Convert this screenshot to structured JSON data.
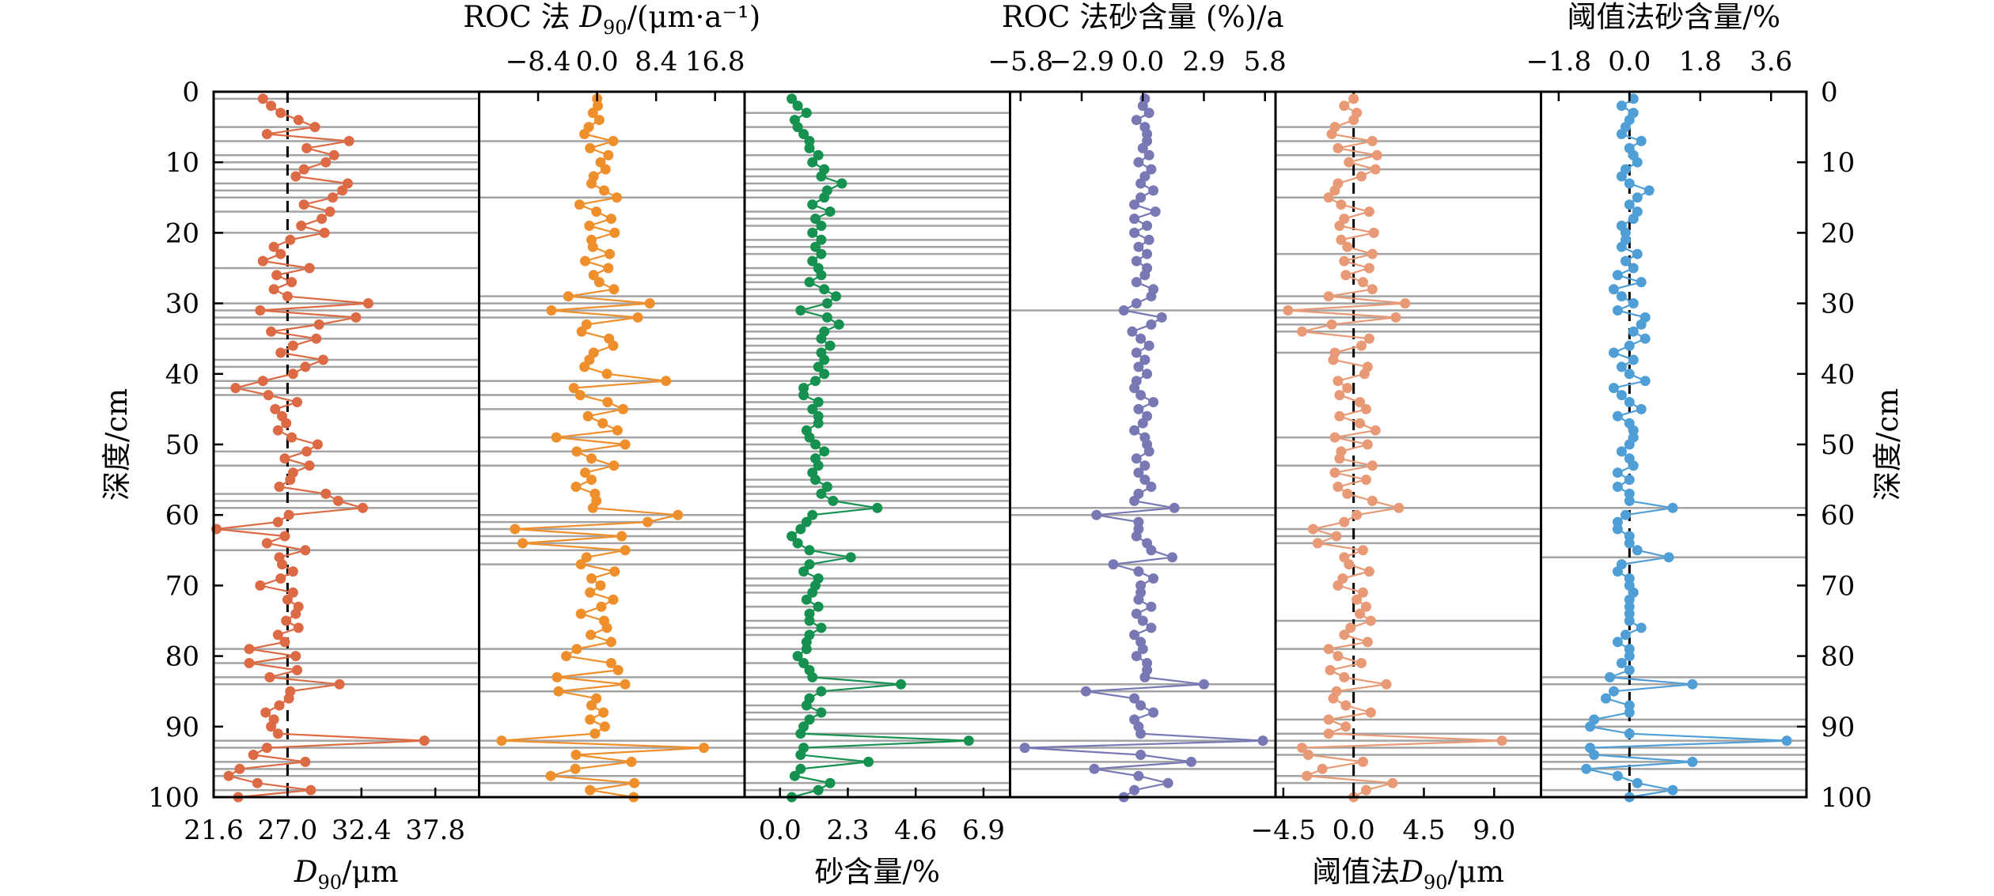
{
  "chart_data": {
    "type": "line",
    "depth_axis": {
      "label": "深度/cm",
      "range": [
        0,
        100
      ],
      "ticks": [
        "0",
        "10",
        "20",
        "30",
        "40",
        "50",
        "60",
        "70",
        "80",
        "90",
        "100"
      ],
      "direction": "downward"
    },
    "depths": [
      1,
      2,
      3,
      4,
      5,
      6,
      7,
      8,
      9,
      10,
      11,
      12,
      13,
      14,
      15,
      16,
      17,
      18,
      19,
      20,
      21,
      22,
      23,
      24,
      25,
      26,
      27,
      28,
      29,
      30,
      31,
      32,
      33,
      34,
      35,
      36,
      37,
      38,
      39,
      40,
      41,
      42,
      43,
      44,
      45,
      46,
      47,
      48,
      49,
      50,
      51,
      52,
      53,
      54,
      55,
      56,
      57,
      58,
      59,
      60,
      61,
      62,
      63,
      64,
      65,
      66,
      67,
      68,
      69,
      70,
      71,
      72,
      73,
      74,
      75,
      76,
      77,
      78,
      79,
      80,
      81,
      82,
      83,
      84,
      85,
      86,
      87,
      88,
      89,
      90,
      91,
      92,
      93,
      94,
      95,
      96,
      97,
      98,
      99,
      100
    ],
    "panels": [
      {
        "id": "d90",
        "title_top": "",
        "title_bottom": "D90/μm",
        "bottom_ticks": [
          "21.6",
          "27.0",
          "32.4",
          "37.8"
        ],
        "top_ticks": [],
        "xlim": [
          21.6,
          41.0
        ],
        "tick_values": [
          21.6,
          27.0,
          32.4,
          37.8
        ],
        "ref_line": 27.0,
        "color": "#dc6a45",
        "values": [
          25.2,
          25.8,
          26.5,
          27.8,
          29.0,
          25.5,
          31.5,
          28.4,
          30.4,
          29.8,
          28.2,
          27.6,
          31.4,
          31.0,
          30.3,
          28.2,
          30.1,
          29.5,
          28.0,
          29.7,
          27.2,
          26.0,
          26.5,
          25.2,
          28.6,
          26.2,
          27.3,
          26.0,
          27.0,
          32.9,
          25.0,
          32.0,
          29.3,
          25.8,
          29.1,
          27.4,
          26.5,
          29.6,
          28.3,
          27.4,
          25.2,
          23.2,
          25.6,
          27.7,
          26.1,
          26.6,
          26.9,
          26.3,
          27.3,
          29.2,
          28.4,
          26.8,
          28.6,
          27.4,
          27.2,
          26.4,
          29.8,
          30.7,
          32.5,
          27.1,
          26.3,
          21.8,
          26.8,
          25.5,
          28.3,
          26.4,
          26.6,
          27.4,
          26.5,
          25.0,
          27.4,
          27.0,
          27.8,
          27.6,
          26.9,
          27.8,
          26.3,
          26.8,
          24.2,
          27.6,
          24.2,
          27.7,
          25.7,
          30.8,
          27.2,
          27.1,
          26.4,
          25.4,
          26.0,
          25.8,
          26.3,
          37.0,
          25.5,
          24.5,
          28.3,
          23.5,
          22.7,
          24.8,
          28.7,
          23.4
        ]
      },
      {
        "id": "roc_d90",
        "title_top": "ROC 法 D90/(μm·a⁻¹)",
        "title_bottom": "",
        "bottom_ticks": [],
        "top_ticks": [
          "−8.4",
          "0.0",
          "8.4",
          "16.8"
        ],
        "xlim": [
          -16.8,
          21.0
        ],
        "tick_values": [
          -8.4,
          0.0,
          8.4,
          16.8
        ],
        "ref_line": null,
        "color": "#ee8f2c",
        "values": [
          0.0,
          0.1,
          -0.6,
          0.3,
          -1.2,
          -1.8,
          2.3,
          -1.0,
          1.6,
          0.5,
          1.2,
          -0.5,
          -0.8,
          1.0,
          2.8,
          -2.5,
          -0.1,
          2.0,
          -1.1,
          2.5,
          -0.8,
          -0.6,
          1.8,
          -1.7,
          1.6,
          -0.5,
          0.3,
          2.4,
          -4.1,
          7.5,
          -6.5,
          5.8,
          -1.5,
          -2.2,
          1.7,
          2.3,
          -0.5,
          -1.1,
          -1.8,
          1.4,
          9.8,
          -3.3,
          -2.4,
          1.5,
          3.7,
          -1.3,
          0.8,
          2.9,
          -5.8,
          4.0,
          -2.9,
          -0.8,
          2.4,
          -1.7,
          -0.8,
          -3.0,
          -0.3,
          -0.1,
          -0.6,
          11.5,
          7.2,
          -11.7,
          3.5,
          -10.6,
          4.0,
          -1.5,
          -2.3,
          2.5,
          -0.8,
          0.5,
          -1.0,
          2.3,
          0.6,
          -2.3,
          1.0,
          1.4,
          -0.9,
          2.0,
          -2.9,
          -4.4,
          2.0,
          3.0,
          -5.7,
          4.0,
          -5.5,
          -0.1,
          -0.8,
          0.9,
          -1.0,
          1.1,
          -0.3,
          -13.6,
          15.2,
          -3.0,
          4.9,
          -3.1,
          -6.6,
          5.3,
          -1.0,
          5.2
        ]
      },
      {
        "id": "sand",
        "title_top": "",
        "title_bottom": "砂含量/%",
        "bottom_ticks": [
          "0.0",
          "2.3",
          "4.6",
          "6.9"
        ],
        "top_ticks": [],
        "xlim": [
          -1.2,
          7.8
        ],
        "tick_values": [
          0.0,
          2.3,
          4.6,
          6.9
        ],
        "ref_line": null,
        "color": "#16914f",
        "values": [
          0.4,
          0.6,
          0.9,
          0.5,
          0.6,
          0.8,
          1.0,
          1.0,
          1.3,
          1.1,
          1.5,
          1.4,
          2.1,
          1.6,
          1.5,
          1.1,
          1.7,
          1.2,
          1.4,
          1.1,
          1.4,
          1.2,
          1.4,
          1.1,
          1.3,
          1.4,
          1.0,
          1.5,
          1.9,
          1.6,
          0.7,
          1.6,
          2.0,
          1.5,
          1.4,
          1.7,
          1.4,
          1.5,
          1.3,
          1.5,
          1.2,
          0.8,
          0.8,
          1.3,
          1.1,
          1.3,
          1.3,
          0.9,
          1.0,
          1.2,
          1.5,
          1.2,
          1.3,
          1.1,
          1.2,
          1.6,
          1.4,
          1.8,
          3.3,
          1.1,
          0.9,
          0.7,
          0.4,
          0.6,
          1.0,
          2.4,
          1.0,
          0.8,
          1.3,
          1.2,
          1.1,
          0.9,
          1.3,
          1.0,
          1.0,
          1.4,
          1.0,
          0.9,
          0.9,
          0.6,
          0.8,
          1.0,
          1.1,
          4.1,
          1.4,
          1.0,
          0.9,
          1.4,
          1.0,
          0.8,
          0.7,
          6.4,
          0.8,
          0.7,
          3.0,
          0.7,
          0.5,
          1.7,
          1.3,
          0.4
        ]
      },
      {
        "id": "roc_sand",
        "title_top": "ROC 法砂含量 (%)/a",
        "title_bottom": "",
        "bottom_ticks": [],
        "top_ticks": [
          "−5.8",
          "−2.9",
          "0.0",
          "2.9",
          "5.8"
        ],
        "xlim": [
          -6.3,
          6.3
        ],
        "tick_values": [
          -5.8,
          -2.9,
          0.0,
          2.9,
          5.8
        ],
        "ref_line": null,
        "color": "#7878b4",
        "values": [
          0.1,
          0.0,
          0.3,
          -0.3,
          0.1,
          0.2,
          0.2,
          0.0,
          0.3,
          -0.2,
          0.4,
          0.1,
          -0.1,
          0.5,
          -0.1,
          -0.4,
          0.6,
          -0.4,
          0.2,
          -0.4,
          0.3,
          -0.2,
          0.2,
          -0.3,
          0.2,
          0.1,
          -0.3,
          0.5,
          0.4,
          -0.3,
          -0.9,
          0.9,
          0.4,
          -0.5,
          -0.1,
          0.3,
          -0.3,
          0.1,
          -0.2,
          0.2,
          -0.3,
          -0.4,
          -0.1,
          0.5,
          -0.2,
          0.2,
          0.0,
          -0.4,
          0.1,
          0.2,
          0.3,
          -0.3,
          0.1,
          -0.2,
          0.1,
          0.4,
          -0.2,
          -0.4,
          1.5,
          -2.2,
          -0.2,
          -0.2,
          -0.3,
          0.2,
          0.4,
          1.4,
          -1.4,
          -0.2,
          0.5,
          -0.1,
          -0.1,
          -0.2,
          0.4,
          -0.3,
          0.0,
          0.4,
          -0.4,
          -0.1,
          0.0,
          -0.3,
          0.2,
          0.2,
          0.1,
          2.9,
          -2.7,
          -0.4,
          -0.1,
          0.5,
          -0.4,
          -0.2,
          -0.1,
          5.7,
          -5.6,
          -0.1,
          2.3,
          -2.3,
          -0.2,
          1.2,
          -0.4,
          -0.9
        ]
      },
      {
        "id": "thr_d90",
        "title_top": "",
        "title_bottom": "阈值法D90/μm",
        "bottom_ticks": [
          "−4.5",
          "0.0",
          "4.5",
          "9.0"
        ],
        "top_ticks": [],
        "xlim": [
          -5.0,
          12.0
        ],
        "tick_values": [
          -4.5,
          0.0,
          4.5,
          9.0
        ],
        "ref_line": 0.0,
        "color": "#e89a76",
        "values": [
          0.0,
          -0.6,
          0.2,
          0.0,
          -1.2,
          -1.4,
          1.2,
          -1.0,
          1.5,
          -0.3,
          1.4,
          0.5,
          -1.0,
          -1.2,
          -1.6,
          -0.8,
          1.0,
          -0.6,
          -0.9,
          1.3,
          -0.8,
          -0.4,
          1.2,
          -0.6,
          1.0,
          -0.5,
          0.6,
          1.2,
          -1.6,
          3.3,
          -4.2,
          2.7,
          -1.4,
          -3.3,
          1.0,
          0.5,
          -1.2,
          -1.3,
          0.9,
          0.7,
          -1.0,
          -0.4,
          -0.9,
          0.4,
          0.8,
          -0.9,
          0.4,
          1.4,
          -1.2,
          0.9,
          -0.8,
          -0.9,
          1.2,
          -1.2,
          0.8,
          -1.0,
          -0.4,
          1.2,
          2.9,
          0.2,
          -0.6,
          -2.6,
          -1.1,
          -2.3,
          0.6,
          -0.6,
          -0.3,
          1.0,
          -0.7,
          -1.0,
          0.6,
          0.2,
          0.8,
          0.4,
          1.1,
          -0.2,
          -0.6,
          0.9,
          -1.6,
          -1.0,
          0.5,
          -1.5,
          -0.6,
          2.1,
          -1.1,
          -1.3,
          -0.5,
          1.1,
          -1.6,
          -0.5,
          -1.6,
          9.5,
          -3.3,
          -2.9,
          0.6,
          -2.0,
          -3.0,
          2.5,
          0.8,
          0.0
        ]
      },
      {
        "id": "thr_sand",
        "title_top": "阈值法砂含量/%",
        "title_bottom": "",
        "bottom_ticks": [],
        "top_ticks": [
          "−1.8",
          "0.0",
          "1.8",
          "3.6"
        ],
        "xlim": [
          -2.25,
          4.5
        ],
        "tick_values": [
          -1.8,
          0.0,
          1.8,
          3.6
        ],
        "ref_line": 0.0,
        "color": "#4f9fd6",
        "values": [
          0.1,
          -0.2,
          0.1,
          0.0,
          -0.1,
          -0.2,
          0.3,
          0.0,
          0.1,
          0.2,
          -0.1,
          -0.2,
          0.0,
          0.5,
          0.2,
          0.0,
          0.2,
          0.1,
          -0.2,
          -0.1,
          -0.1,
          -0.2,
          0.2,
          -0.1,
          0.1,
          -0.3,
          0.3,
          -0.4,
          -0.2,
          0.1,
          -0.3,
          0.4,
          0.3,
          0.1,
          0.4,
          0.0,
          -0.4,
          0.1,
          -0.2,
          0.0,
          0.4,
          -0.4,
          -0.2,
          0.0,
          0.3,
          -0.3,
          0.0,
          0.1,
          0.1,
          0.0,
          -0.2,
          0.0,
          0.1,
          -0.3,
          0.0,
          -0.3,
          0.0,
          0.0,
          1.1,
          -0.1,
          -0.3,
          -0.3,
          0.0,
          0.0,
          0.2,
          1.0,
          -0.2,
          -0.3,
          0.0,
          0.0,
          0.1,
          0.0,
          0.0,
          0.0,
          0.0,
          0.3,
          -0.1,
          -0.3,
          0.0,
          0.0,
          -0.2,
          0.0,
          -0.5,
          1.6,
          -0.4,
          -0.6,
          0.0,
          0.0,
          -0.9,
          -1.0,
          0.0,
          4.0,
          -1.0,
          -0.9,
          1.6,
          -1.1,
          -0.3,
          0.2,
          1.1,
          0.0
        ]
      }
    ]
  }
}
